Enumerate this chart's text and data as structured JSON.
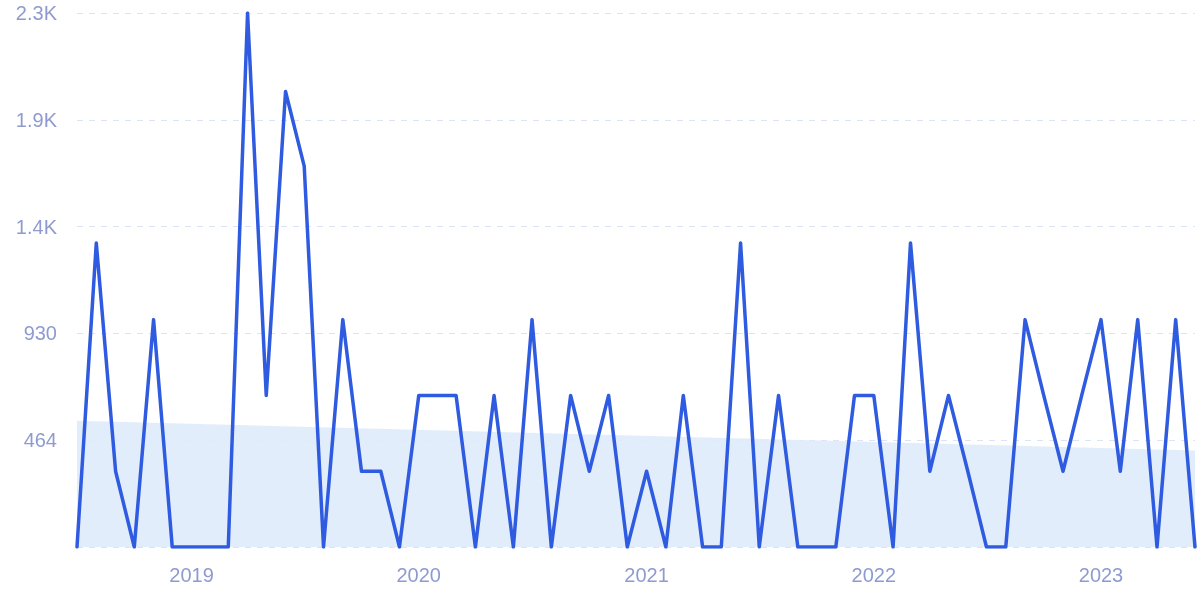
{
  "chart_data": {
    "type": "line",
    "x": [
      "2018-07",
      "2018-08",
      "2018-09",
      "2018-10",
      "2018-11",
      "2018-12",
      "2019-01",
      "2019-02",
      "2019-03",
      "2019-04",
      "2019-05",
      "2019-06",
      "2019-07",
      "2019-08",
      "2019-09",
      "2019-10",
      "2019-11",
      "2019-12",
      "2020-01",
      "2020-02",
      "2020-03",
      "2020-04",
      "2020-05",
      "2020-06",
      "2020-07",
      "2020-08",
      "2020-09",
      "2020-10",
      "2020-11",
      "2020-12",
      "2021-01",
      "2021-02",
      "2021-03",
      "2021-04",
      "2021-05",
      "2021-06",
      "2021-07",
      "2021-08",
      "2021-09",
      "2021-10",
      "2021-11",
      "2021-12",
      "2022-01",
      "2022-02",
      "2022-03",
      "2022-04",
      "2022-05",
      "2022-06",
      "2022-07",
      "2022-08",
      "2022-09",
      "2022-10",
      "2022-11",
      "2022-12",
      "2023-01",
      "2023-02",
      "2023-03",
      "2023-04",
      "2023-05",
      "2023-06"
    ],
    "series": [
      {
        "type": "area",
        "color": "#dfebfb",
        "x": [
          "2018-07",
          "2023-06"
        ],
        "values": [
          550,
          420
        ]
      },
      {
        "type": "line",
        "color": "#2f5be0",
        "values": [
          0,
          1324,
          330,
          0,
          990,
          0,
          0,
          0,
          0,
          2325,
          660,
          1983,
          1658,
          0,
          990,
          330,
          330,
          0,
          660,
          660,
          660,
          0,
          660,
          0,
          990,
          0,
          660,
          330,
          660,
          0,
          330,
          0,
          660,
          0,
          0,
          1324,
          0,
          660,
          0,
          0,
          0,
          660,
          660,
          0,
          1324,
          330,
          660,
          330,
          0,
          0,
          990,
          660,
          330,
          660,
          990,
          330,
          990,
          0,
          990,
          0
        ]
      }
    ],
    "xlim": [
      "2018-07",
      "2023-06"
    ],
    "xticks": [
      {
        "value": "2019-01",
        "label": "2019"
      },
      {
        "value": "2020-01",
        "label": "2020"
      },
      {
        "value": "2021-01",
        "label": "2021"
      },
      {
        "value": "2022-01",
        "label": "2022"
      },
      {
        "value": "2023-01",
        "label": "2023"
      }
    ],
    "ylim": [
      0,
      2325
    ],
    "yticks": [
      {
        "value": 0,
        "label": null
      },
      464,
      930,
      {
        "value": 1395,
        "label": "1.4K"
      },
      {
        "value": 1860,
        "label": "1.9K"
      },
      {
        "value": 2325,
        "label": "2.3K"
      }
    ],
    "grid": "y",
    "marker": "none",
    "line_style": "solid"
  }
}
